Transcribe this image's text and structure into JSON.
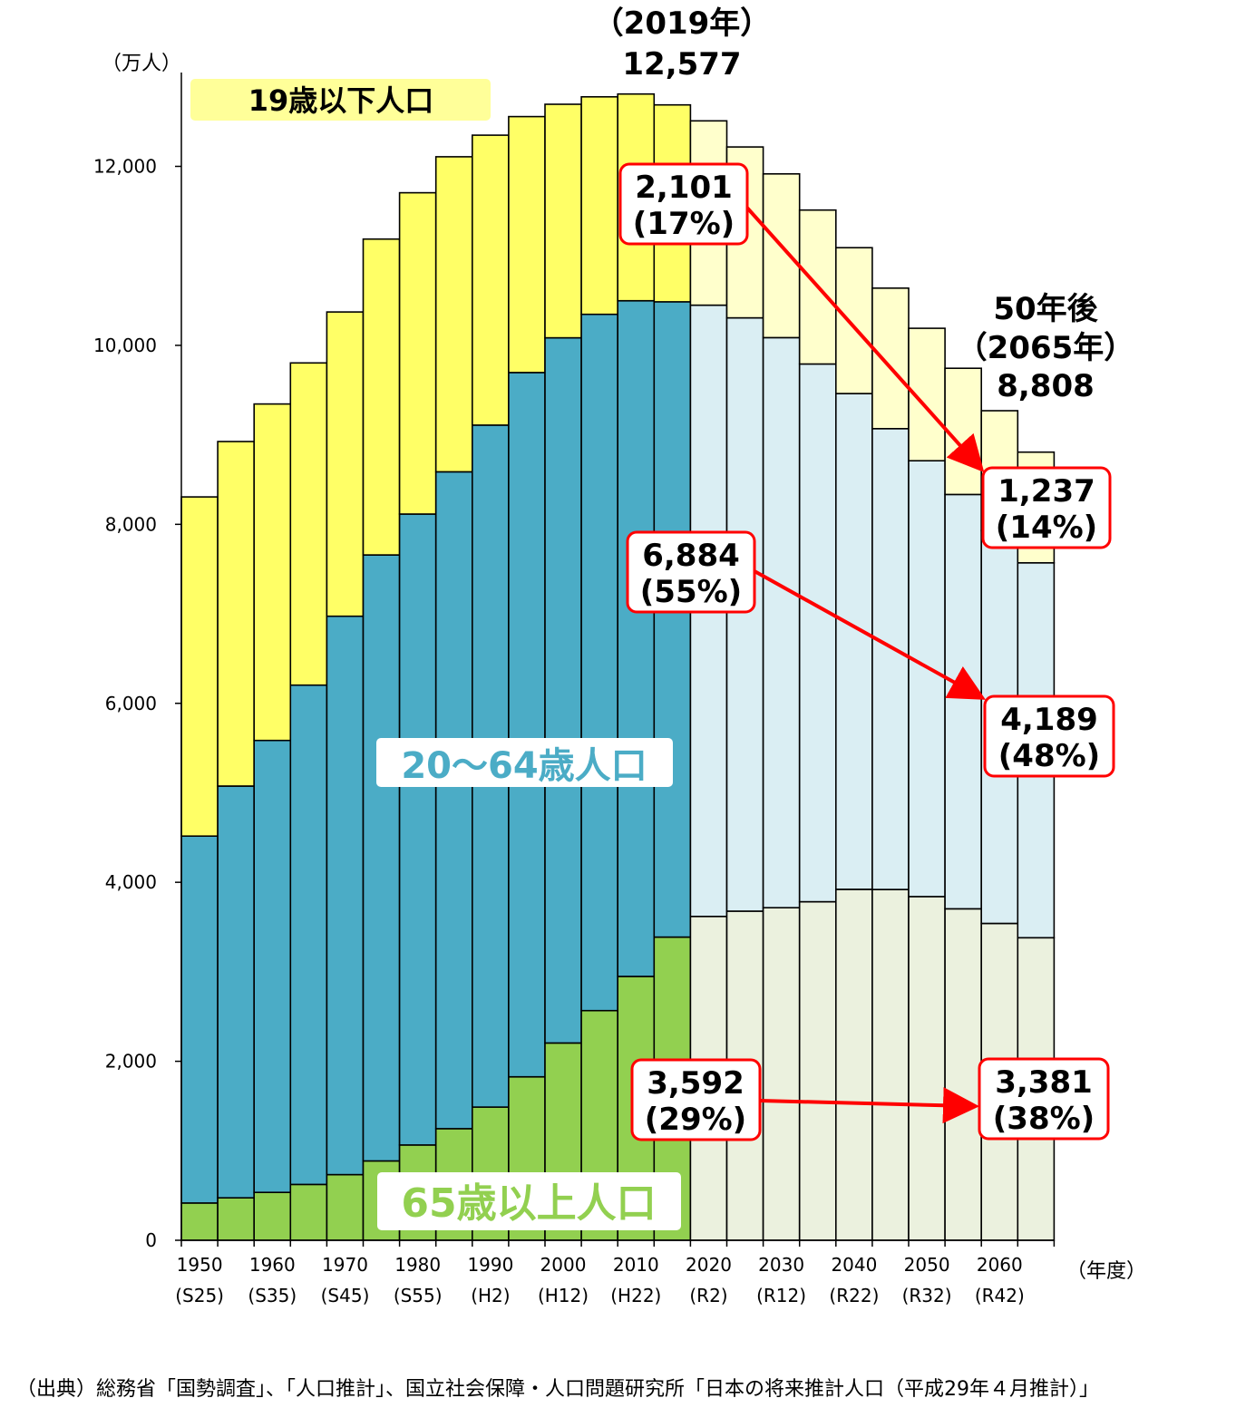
{
  "chart_data": {
    "type": "bar",
    "stacked": true,
    "yunit": "（万人）",
    "xunit": "（年度）",
    "ylim": [
      0,
      13000
    ],
    "yticks": [
      "0",
      "2,000",
      "4,000",
      "6,000",
      "8,000",
      "10,000",
      "12,000"
    ],
    "ytick_values": [
      0,
      2000,
      4000,
      6000,
      8000,
      10000,
      12000
    ],
    "years": [
      1950,
      1955,
      1960,
      1965,
      1970,
      1975,
      1980,
      1985,
      1990,
      1995,
      2000,
      2005,
      2010,
      2015,
      2020,
      2025,
      2030,
      2035,
      2040,
      2045,
      2050,
      2055,
      2060,
      2065
    ],
    "projected_from_index": 14,
    "xtick_labels": [
      {
        "year": "1950",
        "era": "(S25)"
      },
      {
        "year": "1960",
        "era": "(S35)"
      },
      {
        "year": "1970",
        "era": "(S45)"
      },
      {
        "year": "1980",
        "era": "(S55)"
      },
      {
        "year": "1990",
        "era": "(H2)"
      },
      {
        "year": "2000",
        "era": "(H12)"
      },
      {
        "year": "2010",
        "era": "(H22)"
      },
      {
        "year": "2020",
        "era": "(R2)"
      },
      {
        "year": "2030",
        "era": "(R12)"
      },
      {
        "year": "2040",
        "era": "(R22)"
      },
      {
        "year": "2050",
        "era": "(R32)"
      },
      {
        "year": "2060",
        "era": "(R42)"
      }
    ],
    "series": [
      {
        "name": "65歳以上人口",
        "color": "#92d050",
        "projected_color": "#ebf1de",
        "values": [
          416,
          475,
          535,
          624,
          733,
          887,
          1065,
          1247,
          1489,
          1826,
          2204,
          2567,
          2948,
          3387,
          3619,
          3677,
          3716,
          3782,
          3921,
          3919,
          3841,
          3704,
          3540,
          3381
        ]
      },
      {
        "name": "20～64歳人口",
        "color": "#4bacc6",
        "projected_color": "#daeef3",
        "values": [
          4100,
          4600,
          5050,
          5580,
          6240,
          6770,
          7050,
          7340,
          7620,
          7870,
          7880,
          7780,
          7550,
          7100,
          6830,
          6630,
          6370,
          6010,
          5540,
          5150,
          4870,
          4630,
          4390,
          4189
        ]
      },
      {
        "name": "19歳以下人口",
        "color": "#ffff66",
        "projected_color": "#ffffcc",
        "values": [
          3790,
          3850,
          3760,
          3600,
          3400,
          3530,
          3590,
          3520,
          3240,
          2860,
          2610,
          2430,
          2310,
          2200,
          2060,
          1910,
          1830,
          1720,
          1630,
          1570,
          1480,
          1410,
          1340,
          1237
        ]
      }
    ],
    "peak_label": {
      "year": "（2019年）",
      "value": "12,577"
    },
    "future_label": {
      "title": "50年後",
      "year": "（2065年）",
      "value": "8,808"
    },
    "category_labels": {
      "under19": "19歳以下人口",
      "working": "20～64歳人口",
      "elderly": "65歳以上人口"
    },
    "annotations": [
      {
        "from": {
          "value": "2,101",
          "pct": "(17%)"
        },
        "to": {
          "value": "1,237",
          "pct": "(14%)"
        }
      },
      {
        "from": {
          "value": "6,884",
          "pct": "(55%)"
        },
        "to": {
          "value": "4,189",
          "pct": "(48%)"
        }
      },
      {
        "from": {
          "value": "3,592",
          "pct": "(29%)"
        },
        "to": {
          "value": "3,381",
          "pct": "(38%)"
        }
      }
    ]
  },
  "colors": {
    "border": "#000000",
    "arrow": "#ff0000",
    "box_border": "#ff0000",
    "under19_label_bg": "#ffff99",
    "working_text": "#4bacc6",
    "elderly_text": "#92d050"
  },
  "source": "（出典）総務省「国勢調査」、「人口推計」、国立社会保障・人口問題研究所「日本の将来推計人口（平成29年４月推計）」"
}
